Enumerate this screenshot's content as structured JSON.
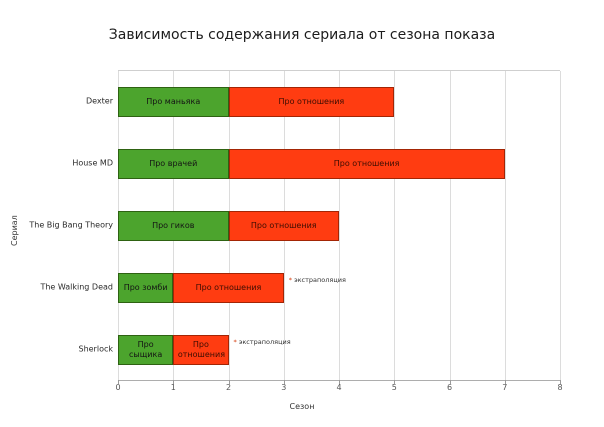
{
  "title": "Зависимость содержания сериала от сезона показа",
  "chart_data": {
    "type": "bar",
    "orientation": "horizontal",
    "stacked": true,
    "title": "Зависимость содержания сериала от сезона показа",
    "xlabel": "Сезон",
    "ylabel": "Сериал",
    "xlim": [
      0,
      8
    ],
    "xticks": [
      "0",
      "1",
      "2",
      "3",
      "4",
      "5",
      "6",
      "7",
      "8"
    ],
    "grid": true,
    "legend": false,
    "palette": {
      "green_fill": "#4CA42D",
      "green_border": "#2E6212",
      "red_fill": "#FF3C11",
      "red_border": "#A32505",
      "gridline": "#DCDCDC",
      "axis": "#9A9A9A",
      "annotation_star": "#D43A0A"
    },
    "categories": [
      "Dexter",
      "House MD",
      "The Big Bang Theory",
      "The Walking Dead",
      "Sherlock"
    ],
    "rows": [
      {
        "category": "Dexter",
        "segments": [
          {
            "label": "Про маньяка",
            "from": 0,
            "to": 2,
            "color": "green"
          },
          {
            "label": "Про отношения",
            "from": 2,
            "to": 5,
            "color": "red"
          }
        ],
        "annotation": null
      },
      {
        "category": "House MD",
        "segments": [
          {
            "label": "Про врачей",
            "from": 0,
            "to": 2,
            "color": "green"
          },
          {
            "label": "Про отношения",
            "from": 2,
            "to": 7,
            "color": "red"
          }
        ],
        "annotation": null
      },
      {
        "category": "The Big Bang Theory",
        "segments": [
          {
            "label": "Про гиков",
            "from": 0,
            "to": 2,
            "color": "green"
          },
          {
            "label": "Про отношения",
            "from": 2,
            "to": 4,
            "color": "red"
          }
        ],
        "annotation": null
      },
      {
        "category": "The Walking Dead",
        "segments": [
          {
            "label": "Про зомби",
            "from": 0,
            "to": 1,
            "color": "green"
          },
          {
            "label": "Про отношения",
            "from": 1,
            "to": 3,
            "color": "red"
          }
        ],
        "annotation": {
          "marker": "*",
          "text": "экстраполяция"
        }
      },
      {
        "category": "Sherlock",
        "segments": [
          {
            "label": "Про сыщика",
            "from": 0,
            "to": 1,
            "color": "green"
          },
          {
            "label": "Про отношения",
            "from": 1,
            "to": 2,
            "color": "red"
          }
        ],
        "annotation": {
          "marker": "*",
          "text": "экстраполяция"
        }
      }
    ]
  }
}
